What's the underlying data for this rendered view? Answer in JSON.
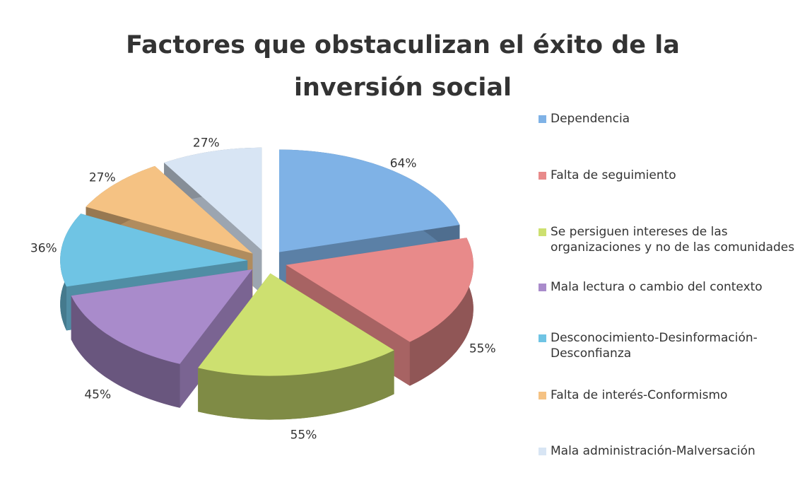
{
  "chart_data": {
    "type": "pie3d",
    "title": "Factores que obstaculizan el éxito de la inversión social",
    "categories": [
      "Dependencia",
      "Falta de seguimiento",
      "Se persiguen intereses de las organizaciones y no de las comunidades",
      "Mala lectura o cambio del contexto",
      "Desconocimiento-Desinformación-Desconfianza",
      "Falta de interés-Conformismo",
      "Mala administración-Malversación"
    ],
    "values": [
      64,
      55,
      55,
      45,
      36,
      27,
      27
    ],
    "value_labels": [
      "64%",
      "55%",
      "55%",
      "45%",
      "36%",
      "27%",
      "27%"
    ],
    "colors": [
      "#7fb2e6",
      "#e88a8a",
      "#cde070",
      "#a98bcb",
      "#6fc4e4",
      "#f5c283",
      "#d8e5f4"
    ],
    "legend": "right"
  }
}
